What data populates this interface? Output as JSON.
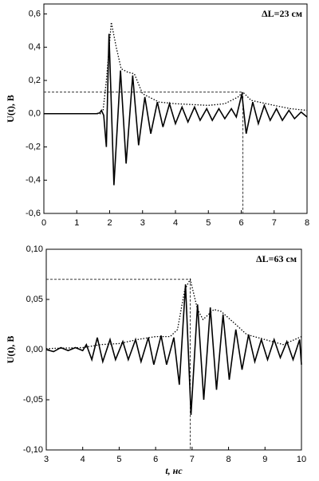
{
  "chart_data": [
    {
      "type": "line",
      "ylabel": "U(t), В",
      "annotation": "ΔL=23 см",
      "xlim": [
        0,
        8
      ],
      "ylim": [
        -0.6,
        0.66
      ],
      "xticks": [
        0,
        1,
        2,
        3,
        4,
        5,
        6,
        7,
        8
      ],
      "yticks": [
        {
          "value": -0.6,
          "label": "-0,6"
        },
        {
          "value": -0.4,
          "label": "-0,4"
        },
        {
          "value": -0.2,
          "label": "-0,2"
        },
        {
          "value": 0,
          "label": "0,0"
        },
        {
          "value": 0.2,
          "label": "0,2"
        },
        {
          "value": 0.4,
          "label": "0,4"
        },
        {
          "value": 0.6,
          "label": "0,6"
        }
      ],
      "marker": {
        "x": 6.05,
        "y": 0.13
      },
      "series": [
        {
          "color": "#000000",
          "dash": "solid",
          "x": [
            0,
            1.6,
            1.7,
            1.75,
            1.82,
            1.9,
            1.98,
            2.13,
            2.33,
            2.5,
            2.7,
            2.88,
            3.07,
            3.25,
            3.45,
            3.62,
            3.82,
            4.0,
            4.2,
            4.38,
            4.58,
            4.75,
            4.95,
            5.12,
            5.32,
            5.5,
            5.7,
            5.85,
            6.02,
            6.15,
            6.35,
            6.52,
            6.7,
            6.88,
            7.07,
            7.25,
            7.45,
            7.62,
            7.82,
            8.0
          ],
          "values": [
            0,
            0,
            0.005,
            0.02,
            -0.01,
            -0.2,
            0.48,
            -0.43,
            0.26,
            -0.3,
            0.23,
            -0.19,
            0.1,
            -0.12,
            0.07,
            -0.08,
            0.06,
            -0.06,
            0.04,
            -0.05,
            0.04,
            -0.04,
            0.03,
            -0.04,
            0.03,
            -0.03,
            0.03,
            -0.02,
            0.12,
            -0.12,
            0.07,
            -0.06,
            0.05,
            -0.04,
            0.03,
            -0.04,
            0.02,
            -0.03,
            0.01,
            -0.02
          ]
        },
        {
          "color": "#000000",
          "dash": "dotted",
          "x": [
            0,
            1.75,
            1.8,
            1.9,
            2.05,
            2.2,
            2.35,
            2.55,
            2.75,
            3.0,
            3.5,
            4.0,
            5.0,
            5.5,
            5.9,
            6.05,
            6.3,
            7.0,
            7.5,
            8.0
          ],
          "values": [
            0,
            0,
            0.02,
            0.2,
            0.55,
            0.4,
            0.27,
            0.25,
            0.24,
            0.12,
            0.07,
            0.06,
            0.05,
            0.06,
            0.1,
            0.13,
            0.08,
            0.05,
            0.03,
            0.02
          ]
        }
      ]
    },
    {
      "type": "line",
      "ylabel": "U(t), В",
      "xlabel": "t, нс",
      "annotation": "ΔL=63 см",
      "xlim": [
        3,
        10
      ],
      "ylim": [
        -0.1,
        0.1
      ],
      "xticks": [
        3,
        4,
        5,
        6,
        7,
        8,
        9,
        10
      ],
      "yticks": [
        {
          "value": -0.1,
          "label": "-0,10"
        },
        {
          "value": -0.05,
          "label": "-0,05"
        },
        {
          "value": 0,
          "label": "0,00"
        },
        {
          "value": 0.05,
          "label": "0,05"
        },
        {
          "value": 0.1,
          "label": "0,10"
        }
      ],
      "marker": {
        "x": 6.95,
        "y": 0.07
      },
      "series": [
        {
          "color": "#000000",
          "dash": "solid",
          "x": [
            3,
            3.2,
            3.4,
            3.6,
            3.8,
            4.0,
            4.1,
            4.25,
            4.4,
            4.55,
            4.75,
            4.9,
            5.1,
            5.25,
            5.45,
            5.6,
            5.8,
            5.95,
            6.15,
            6.3,
            6.5,
            6.65,
            6.82,
            6.97,
            7.15,
            7.32,
            7.5,
            7.67,
            7.85,
            8.02,
            8.2,
            8.37,
            8.55,
            8.72,
            8.9,
            9.07,
            9.25,
            9.42,
            9.6,
            9.77,
            9.95,
            10
          ],
          "values": [
            0,
            -0.002,
            0.002,
            -0.001,
            0.002,
            -0.001,
            0.005,
            -0.01,
            0.012,
            -0.012,
            0.01,
            -0.01,
            0.008,
            -0.01,
            0.01,
            -0.012,
            0.012,
            -0.015,
            0.014,
            -0.015,
            0.012,
            -0.035,
            0.065,
            -0.065,
            0.045,
            -0.05,
            0.042,
            -0.04,
            0.035,
            -0.03,
            0.02,
            -0.02,
            0.015,
            -0.012,
            0.01,
            -0.01,
            0.01,
            -0.008,
            0.008,
            -0.01,
            0.01,
            -0.015
          ]
        },
        {
          "color": "#000000",
          "dash": "dotted",
          "x": [
            3,
            4,
            4.5,
            5,
            5.5,
            6,
            6.4,
            6.6,
            6.8,
            6.95,
            7.15,
            7.3,
            7.6,
            7.8,
            8.2,
            8.5,
            9,
            9.5,
            10
          ],
          "values": [
            0.001,
            0.002,
            0.005,
            0.006,
            0.01,
            0.013,
            0.013,
            0.02,
            0.06,
            0.07,
            0.04,
            0.03,
            0.04,
            0.038,
            0.025,
            0.015,
            0.01,
            0.005,
            0.013
          ]
        }
      ]
    }
  ]
}
